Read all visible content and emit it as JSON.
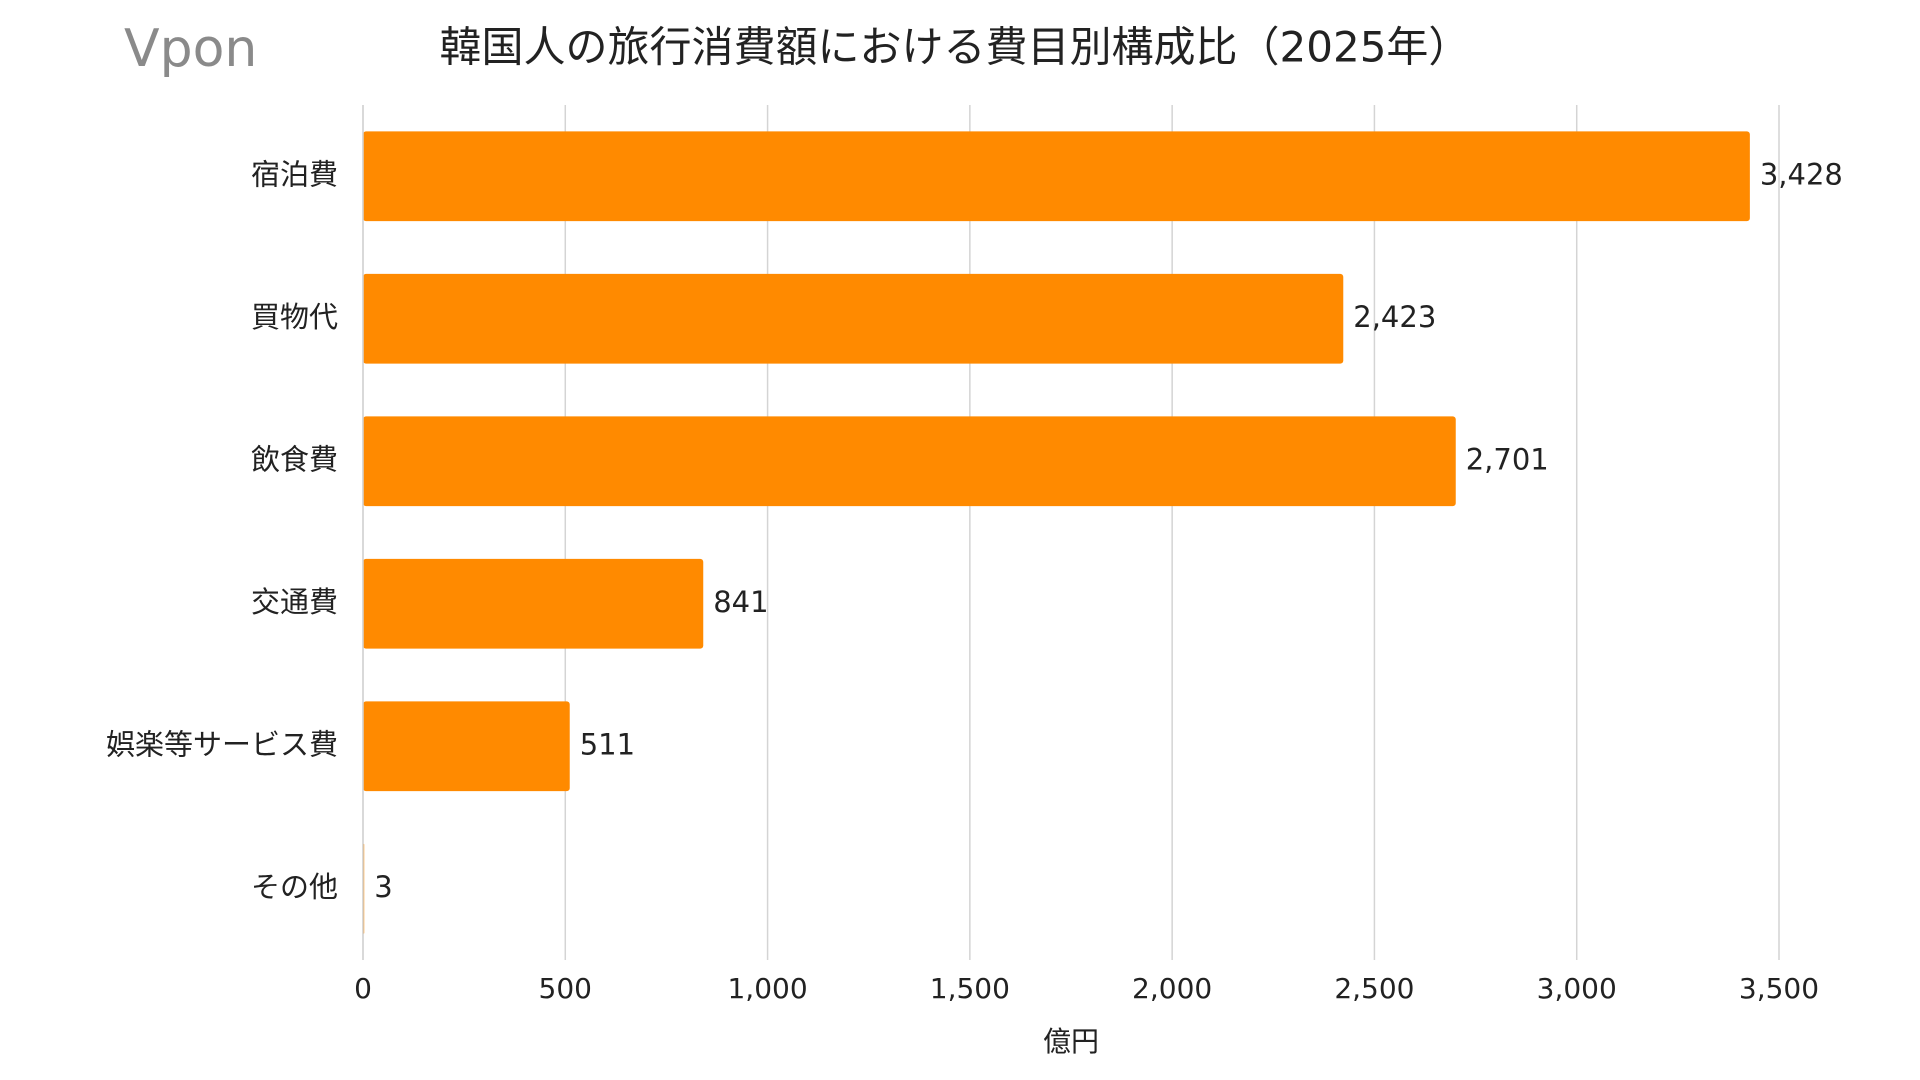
{
  "chart_data": {
    "type": "hbar",
    "brand": "Vpon",
    "title": "韓国人の旅行消費額における費目別構成比（2025年）",
    "xlabel": "億円",
    "categories": [
      "宿泊費",
      "買物代",
      "飲食費",
      "交通費",
      "娯楽等サービス費",
      "その他"
    ],
    "values": [
      3428,
      2423,
      2701,
      841,
      511,
      3
    ],
    "value_labels": [
      "3,428",
      "2,423",
      "2,701",
      "841",
      "511",
      "3"
    ],
    "color": "#ff8a00",
    "xlim": [
      0,
      3500
    ],
    "xticks": [
      0,
      500,
      {
        "value": 1000,
        "label": "1,000"
      },
      {
        "value": 1500,
        "label": "1,500"
      },
      {
        "value": 2000,
        "label": "2,000"
      },
      {
        "value": 2500,
        "label": "2,500"
      },
      {
        "value": 3000,
        "label": "3,000"
      },
      {
        "value": 3500,
        "label": "3,500"
      }
    ],
    "grid": true
  }
}
